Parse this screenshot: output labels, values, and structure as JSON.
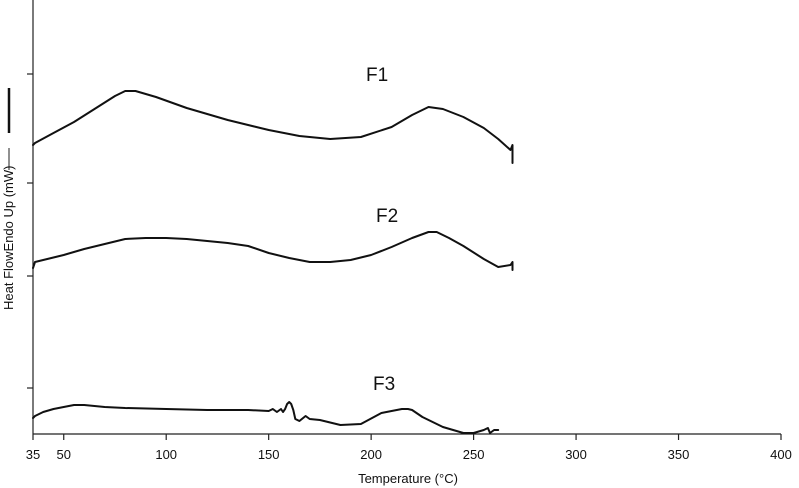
{
  "chart_data": {
    "type": "line",
    "title": "",
    "xlabel": "Temperature (°C)",
    "ylabel": "Heat FlowEndo Up (mW)",
    "xlim": [
      35,
      400
    ],
    "x_ticks": [
      35,
      50,
      100,
      150,
      200,
      250,
      300,
      350,
      400
    ],
    "x_tick_labels": [
      "35",
      "50",
      "100",
      "150",
      "200",
      "250",
      "300",
      "350",
      "400"
    ],
    "grid": false,
    "legend": "none",
    "series": [
      {
        "name": "F1",
        "x": [
          35,
          36,
          45,
          55,
          65,
          75,
          80,
          85,
          95,
          110,
          130,
          150,
          165,
          180,
          195,
          210,
          220,
          228,
          235,
          245,
          255,
          262,
          268,
          269,
          269
        ],
        "y": [
          145,
          143,
          133,
          122,
          109,
          96,
          91,
          91,
          97,
          108,
          120,
          130,
          136,
          139,
          137,
          127,
          115,
          107,
          109,
          117,
          128,
          139,
          150,
          145,
          163
        ]
      },
      {
        "name": "F2",
        "x": [
          35,
          36,
          50,
          60,
          70,
          80,
          90,
          100,
          110,
          120,
          130,
          140,
          150,
          160,
          170,
          180,
          190,
          200,
          210,
          220,
          228,
          232,
          238,
          245,
          255,
          262,
          268,
          269,
          269
        ],
        "y": [
          268,
          262,
          255,
          249,
          244,
          239,
          238,
          238,
          239,
          241,
          243,
          246,
          253,
          258,
          262,
          262,
          260,
          255,
          247,
          238,
          232,
          232,
          238,
          246,
          259,
          267,
          265,
          262,
          270
        ]
      },
      {
        "name": "F3",
        "x": [
          35,
          36,
          40,
          45,
          50,
          55,
          60,
          65,
          70,
          80,
          100,
          120,
          140,
          150,
          152,
          154,
          156,
          157,
          158,
          159,
          160,
          161,
          162,
          163,
          165,
          168,
          170,
          175,
          185,
          195,
          205,
          210,
          215,
          218,
          220,
          225,
          235,
          245,
          250,
          255,
          257,
          258,
          260,
          262
        ],
        "y": [
          418,
          416,
          412,
          409,
          407,
          405,
          405,
          406,
          407,
          408,
          409,
          410,
          410,
          411,
          409,
          412,
          409,
          412,
          409,
          404,
          402,
          404,
          410,
          419,
          421,
          416,
          419,
          420,
          425,
          424,
          413,
          411,
          409,
          409,
          410,
          417,
          427,
          433,
          433,
          430,
          428,
          433,
          430,
          430
        ]
      }
    ]
  },
  "labels": {
    "x_axis_title": "Temperature (°C)",
    "y_axis_title": "Heat FlowEndo Up (mW)",
    "series": [
      "F1",
      "F2",
      "F3"
    ]
  }
}
